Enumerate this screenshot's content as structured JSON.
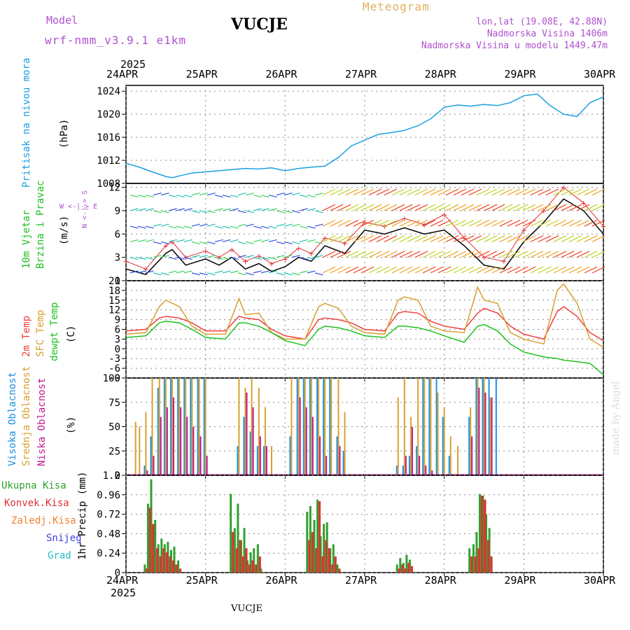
{
  "header": {
    "model_label": "Model",
    "model_name": "wrf-nmm_v3.9.1 e1km",
    "station_title": "VUCJE",
    "product": "Meteogram",
    "location": "lon,lat (19.08E, 42.88N)",
    "elevation": "Nadmorska Visina 1406m",
    "model_elevation": "Nadmorska Visina u modelu 1449.47m",
    "footer_title": "VUCJE",
    "watermark": "made by Angel"
  },
  "colors": {
    "pressure": "#1aa0e0",
    "temp2m": "#f04040",
    "sfc_temp": "#d8a030",
    "dewpt": "#20c020",
    "high_cloud": "#1e90e0",
    "mid_cloud": "#d8a030",
    "low_cloud": "#c01890",
    "precip_total": "#30a030",
    "precip_conv": "#e03030",
    "wind_speed": "#000000",
    "wind_gust": "#e03030",
    "header_purple": "#b050d0",
    "header_orange": "#e0b060"
  },
  "chart_data": {
    "type": "meteogram",
    "x_axis": {
      "year": "2025",
      "tick_labels": [
        "24APR",
        "25APR",
        "26APR",
        "27APR",
        "28APR",
        "29APR",
        "30APR"
      ],
      "range_days": [
        0,
        6
      ]
    },
    "panels": [
      {
        "id": "pressure",
        "type": "line",
        "ylabel": "Pritisak na nivou mora",
        "unit": "(hPa)",
        "ylim": [
          1008,
          1025
        ],
        "yticks": [
          1008,
          1012,
          1016,
          1020,
          1024
        ],
        "series": [
          {
            "x": [
              0,
              0.17,
              0.33,
              0.5,
              0.58,
              0.67,
              0.83,
              1.0,
              1.17,
              1.33,
              1.5,
              1.67,
              1.83,
              2.0,
              2.17,
              2.33,
              2.5,
              2.67,
              2.83,
              3.0,
              3.17,
              3.33,
              3.5,
              3.67,
              3.83,
              4.0,
              4.17,
              4.33,
              4.5,
              4.67,
              4.83,
              5.0,
              5.17,
              5.33,
              5.5,
              5.67,
              5.83,
              6.0
            ],
            "values": [
              1011.5,
              1010.8,
              1010.0,
              1009.2,
              1009.0,
              1009.3,
              1009.8,
              1010.0,
              1010.2,
              1010.4,
              1010.6,
              1010.5,
              1010.7,
              1010.2,
              1010.6,
              1010.8,
              1011.0,
              1012.5,
              1014.5,
              1015.5,
              1016.5,
              1016.8,
              1017.2,
              1018.0,
              1019.2,
              1021.2,
              1021.6,
              1021.4,
              1021.7,
              1021.5,
              1022.0,
              1023.2,
              1023.5,
              1021.5,
              1020.0,
              1019.6,
              1022.0,
              1023.0
            ]
          }
        ]
      },
      {
        "id": "wind",
        "type": "line+barbs",
        "ylabel": "10m Vjetar Brzina i Pravac",
        "unit": "(m/s)",
        "direction_legend": "N <-|-> S   W <-|-> E",
        "ylim": [
          0,
          12.5
        ],
        "yticks": [
          0,
          3,
          6,
          9,
          12
        ],
        "series": [
          {
            "name": "speed",
            "x": [
              0,
              0.25,
              0.5,
              0.58,
              0.75,
              1.0,
              1.17,
              1.33,
              1.5,
              1.67,
              1.83,
              2.0,
              2.17,
              2.33,
              2.5,
              2.75,
              3.0,
              3.25,
              3.5,
              3.75,
              4.0,
              4.25,
              4.5,
              4.75,
              5.0,
              5.25,
              5.5,
              5.75,
              6.0
            ],
            "values": [
              1.5,
              0.8,
              3.5,
              4.0,
              2.0,
              2.8,
              2.0,
              3.0,
              1.5,
              2.2,
              1.2,
              1.8,
              3.0,
              2.5,
              4.5,
              3.5,
              6.5,
              6.0,
              6.8,
              6.0,
              6.5,
              4.5,
              2.0,
              1.5,
              5.0,
              7.5,
              10.5,
              9.0,
              6.0
            ]
          },
          {
            "name": "gusts",
            "x": [
              0,
              0.25,
              0.5,
              0.58,
              0.75,
              1.0,
              1.17,
              1.33,
              1.5,
              1.67,
              1.83,
              2.0,
              2.17,
              2.33,
              2.5,
              2.75,
              3.0,
              3.25,
              3.5,
              3.75,
              4.0,
              4.25,
              4.5,
              4.75,
              5.0,
              5.25,
              5.5,
              5.75,
              6.0
            ],
            "values": [
              2.5,
              1.5,
              4.5,
              5.0,
              3.0,
              3.8,
              3.0,
              4.0,
              2.5,
              3.2,
              2.2,
              2.8,
              4.2,
              3.5,
              5.5,
              4.8,
              7.5,
              7.0,
              8.0,
              7.2,
              8.5,
              5.5,
              3.0,
              2.5,
              6.5,
              9.0,
              12.0,
              10.0,
              7.0
            ]
          }
        ]
      },
      {
        "id": "temperature",
        "type": "line",
        "ylabel_lines": [
          "2m Temp",
          "SFC Temp",
          "dewpt Temp"
        ],
        "unit": "(C)",
        "ylim": [
          -9,
          21
        ],
        "yticks": [
          -9,
          -6,
          -3,
          0,
          3,
          6,
          9,
          12,
          15,
          18,
          21
        ],
        "series": [
          {
            "name": "2m Temp",
            "x": [
              0,
              0.25,
              0.42,
              0.5,
              0.67,
              0.83,
              1.0,
              1.25,
              1.42,
              1.5,
              1.67,
              1.83,
              2.0,
              2.25,
              2.42,
              2.5,
              2.67,
              2.83,
              3.0,
              3.25,
              3.42,
              3.5,
              3.67,
              3.83,
              4.0,
              4.25,
              4.42,
              4.5,
              4.67,
              4.83,
              5.0,
              5.25,
              5.42,
              5.5,
              5.67,
              5.83,
              6.0
            ],
            "values": [
              5.5,
              6.0,
              9.5,
              10.0,
              9.5,
              8.0,
              5.5,
              5.5,
              10.0,
              9.5,
              9.0,
              6.0,
              4.0,
              3.0,
              9.0,
              9.5,
              9.0,
              8.0,
              6.0,
              5.5,
              11.0,
              11.5,
              11.0,
              8.5,
              7.0,
              6.0,
              11.0,
              12.5,
              11.0,
              7.0,
              4.5,
              3.0,
              11.5,
              13.0,
              10.0,
              5.0,
              2.5
            ]
          },
          {
            "name": "SFC Temp",
            "x": [
              0,
              0.25,
              0.42,
              0.5,
              0.67,
              0.83,
              1.0,
              1.25,
              1.42,
              1.5,
              1.67,
              1.83,
              2.0,
              2.25,
              2.42,
              2.5,
              2.67,
              2.83,
              3.0,
              3.25,
              3.42,
              3.5,
              3.67,
              3.83,
              4.0,
              4.25,
              4.42,
              4.5,
              4.67,
              4.83,
              5.0,
              5.25,
              5.42,
              5.5,
              5.67,
              5.83,
              6.0
            ],
            "values": [
              4.5,
              5.0,
              13.0,
              15.0,
              13.0,
              7.0,
              4.5,
              4.5,
              15.5,
              10.5,
              11.0,
              5.0,
              3.0,
              3.0,
              13.0,
              14.0,
              12.5,
              7.0,
              5.0,
              4.5,
              15.0,
              16.0,
              15.0,
              7.0,
              5.5,
              5.0,
              19.0,
              15.0,
              14.0,
              5.0,
              3.0,
              1.5,
              18.0,
              20.0,
              14.0,
              3.0,
              0.5
            ]
          },
          {
            "name": "dewpt Temp",
            "x": [
              0,
              0.25,
              0.42,
              0.5,
              0.67,
              0.83,
              1.0,
              1.25,
              1.42,
              1.5,
              1.67,
              1.83,
              2.0,
              2.25,
              2.42,
              2.5,
              2.67,
              2.83,
              3.0,
              3.25,
              3.42,
              3.5,
              3.67,
              3.83,
              4.0,
              4.25,
              4.42,
              4.5,
              4.67,
              4.83,
              5.0,
              5.25,
              5.42,
              5.5,
              5.67,
              5.83,
              6.0
            ],
            "values": [
              3.5,
              4.0,
              8.0,
              8.5,
              8.0,
              6.0,
              3.5,
              3.0,
              8.0,
              8.0,
              7.0,
              5.0,
              2.5,
              1.0,
              6.0,
              7.0,
              6.5,
              5.5,
              4.0,
              3.5,
              7.0,
              7.0,
              6.5,
              5.5,
              4.0,
              2.0,
              7.0,
              7.5,
              5.5,
              1.5,
              -1.0,
              -2.5,
              -3.0,
              -3.5,
              -4.0,
              -4.5,
              -8.0
            ]
          }
        ]
      },
      {
        "id": "clouds",
        "type": "bar",
        "ylabel_lines": [
          "Visoka Oblacnost",
          "Srednja Oblacnost",
          "Niska Oblacnost"
        ],
        "unit": "(%)",
        "ylim": [
          0,
          100
        ],
        "yticks": [
          0,
          25,
          50,
          75,
          100
        ],
        "note": "bars grouped around the cloudy periods; values in % cover",
        "x": [
          0.12,
          0.17,
          0.25,
          0.33,
          0.42,
          0.5,
          0.58,
          0.67,
          0.75,
          0.83,
          0.92,
          1.0,
          1.42,
          1.5,
          1.58,
          1.67,
          1.75,
          1.83,
          2.08,
          2.17,
          2.25,
          2.33,
          2.42,
          2.5,
          2.58,
          2.67,
          2.75,
          3.42,
          3.5,
          3.58,
          3.67,
          3.75,
          3.83,
          3.92,
          4.0,
          4.08,
          4.17,
          4.33,
          4.42,
          4.5,
          4.58,
          4.67
        ],
        "series": [
          {
            "name": "Visoka Oblacnost",
            "values": [
              0,
              0,
              10,
              40,
              90,
              100,
              100,
              100,
              100,
              100,
              100,
              100,
              30,
              60,
              45,
              30,
              30,
              0,
              40,
              100,
              100,
              100,
              100,
              100,
              100,
              40,
              25,
              10,
              10,
              20,
              30,
              100,
              100,
              100,
              60,
              20,
              0,
              60,
              100,
              100,
              100,
              100
            ]
          },
          {
            "name": "Srednja Oblacnost",
            "values": [
              55,
              50,
              65,
              100,
              100,
              100,
              100,
              100,
              100,
              100,
              100,
              100,
              100,
              90,
              100,
              90,
              70,
              30,
              100,
              100,
              100,
              100,
              100,
              100,
              100,
              100,
              65,
              80,
              100,
              60,
              100,
              100,
              100,
              85,
              70,
              40,
              30,
              70,
              100,
              100,
              80,
              0
            ]
          },
          {
            "name": "Niska Oblacnost",
            "values": [
              0,
              0,
              5,
              20,
              60,
              70,
              80,
              70,
              60,
              50,
              40,
              20,
              0,
              85,
              70,
              40,
              30,
              0,
              0,
              80,
              70,
              60,
              40,
              20,
              0,
              30,
              0,
              0,
              20,
              50,
              20,
              10,
              5,
              0,
              0,
              0,
              0,
              40,
              90,
              85,
              80,
              0
            ]
          }
        ]
      },
      {
        "id": "precip",
        "type": "bar",
        "ylabel": "1hr Precip",
        "unit": "(mm)",
        "legend": [
          "Ukupna Kisa",
          "Konvek.Kisa",
          "Zaledj.Kisa",
          "Snijeg",
          "Grad"
        ],
        "ylim": [
          0,
          1.2
        ],
        "yticks": [
          0,
          0.24,
          0.48,
          0.72,
          0.96,
          1.2
        ],
        "x": [
          0.25,
          0.29,
          0.33,
          0.38,
          0.42,
          0.46,
          0.5,
          0.54,
          0.58,
          0.62,
          0.67,
          1.33,
          1.38,
          1.42,
          1.46,
          1.5,
          1.54,
          1.58,
          1.62,
          1.67,
          1.71,
          2.29,
          2.33,
          2.38,
          2.42,
          2.46,
          2.5,
          2.54,
          2.58,
          2.62,
          2.67,
          3.42,
          3.46,
          3.5,
          3.54,
          3.58,
          4.33,
          4.38,
          4.42,
          4.46,
          4.5,
          4.54,
          4.58
        ],
        "series": [
          {
            "name": "Ukupna Kisa",
            "values": [
              0.1,
              0.85,
              1.15,
              0.65,
              0.35,
              0.42,
              0.35,
              0.38,
              0.28,
              0.32,
              0.15,
              0.97,
              0.55,
              0.85,
              0.4,
              0.55,
              0.15,
              0.25,
              0.3,
              0.35,
              0.05,
              0.75,
              0.82,
              0.65,
              0.9,
              0.45,
              0.6,
              0.62,
              0.3,
              0.35,
              0.1,
              0.1,
              0.18,
              0.12,
              0.22,
              0.16,
              0.3,
              0.35,
              0.5,
              0.97,
              0.95,
              0.72,
              0.55
            ]
          },
          {
            "name": "Konvek.Kisa",
            "values": [
              0.05,
              0.8,
              0.6,
              0.3,
              0.2,
              0.3,
              0.25,
              0.2,
              0.15,
              0.1,
              0.05,
              0.5,
              0.3,
              0.4,
              0.2,
              0.3,
              0.1,
              0.15,
              0.1,
              0.2,
              0.0,
              0.4,
              0.5,
              0.3,
              0.88,
              0.2,
              0.4,
              0.3,
              0.1,
              0.2,
              0.05,
              0.05,
              0.1,
              0.05,
              0.12,
              0.08,
              0.2,
              0.2,
              0.3,
              0.95,
              0.9,
              0.4,
              0.2
            ]
          }
        ]
      }
    ]
  }
}
